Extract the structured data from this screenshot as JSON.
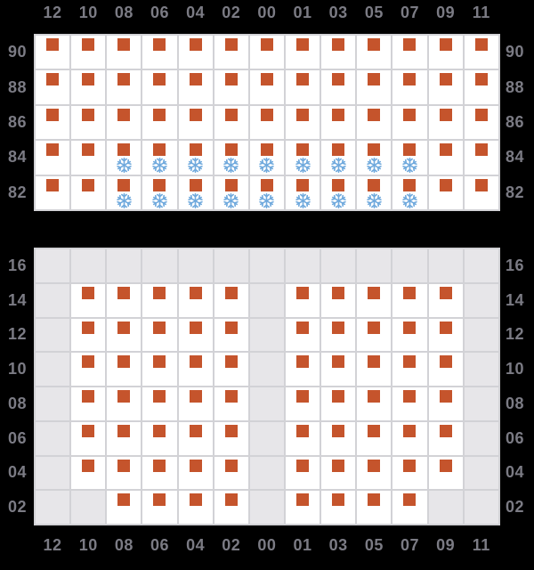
{
  "colors": {
    "background": "#000000",
    "cell": "#ffffff",
    "cell_blocked": "#e7e6e9",
    "grid_line": "#d2d2d6",
    "container_square": "#c5542c",
    "reefer_snowflake": "#71aadd",
    "label": "#7b7b84"
  },
  "columns": [
    "12",
    "10",
    "08",
    "06",
    "04",
    "02",
    "00",
    "01",
    "03",
    "05",
    "07",
    "09",
    "11"
  ],
  "cell_codes": {
    "S": "occupied-slot",
    "F": "occupied-reefer-slot",
    "G": "blocked-slot"
  },
  "panels": [
    {
      "name": "above-deck-bay",
      "column_labels_position": "top",
      "rows": [
        {
          "label": "90",
          "cells": "SSSSSSSSSSSSS"
        },
        {
          "label": "88",
          "cells": "SSSSSSSSSSSSS"
        },
        {
          "label": "86",
          "cells": "SSSSSSSSSSSSS"
        },
        {
          "label": "84",
          "cells": "SSFFFFFFFFFSS"
        },
        {
          "label": "82",
          "cells": "SSFFFFFFFFFSS"
        }
      ]
    },
    {
      "name": "below-deck-bay",
      "column_labels_position": "bottom",
      "rows": [
        {
          "label": "16",
          "cells": "GGGGGGGGGGGGG"
        },
        {
          "label": "14",
          "cells": "GSSSSSGSSSSSG"
        },
        {
          "label": "12",
          "cells": "GSSSSSGSSSSSG"
        },
        {
          "label": "10",
          "cells": "GSSSSSGSSSSSG"
        },
        {
          "label": "08",
          "cells": "GSSSSSGSSSSSG"
        },
        {
          "label": "06",
          "cells": "GSSSSSGSSSSSG"
        },
        {
          "label": "04",
          "cells": "GSSSSSGSSSSSG"
        },
        {
          "label": "02",
          "cells": "GGSSSSGSSSSGG"
        }
      ]
    }
  ]
}
